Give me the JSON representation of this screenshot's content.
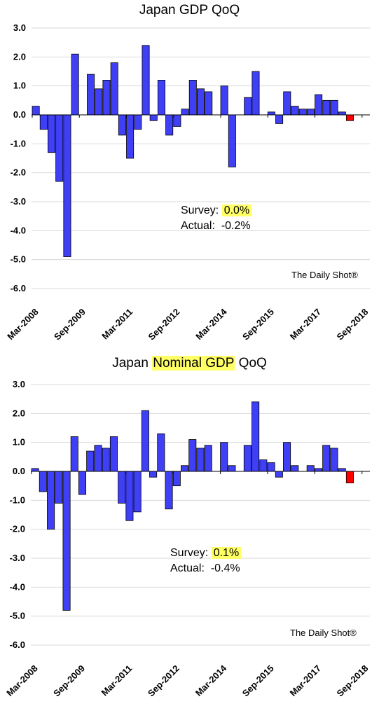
{
  "chart_data": [
    {
      "type": "bar",
      "title": "Japan GDP QoQ",
      "ylim": [
        -6.0,
        3.0
      ],
      "yticks": [
        "3.0",
        "2.0",
        "1.0",
        "0.0",
        "-1.0",
        "-2.0",
        "-3.0",
        "-4.0",
        "-5.0",
        "-6.0"
      ],
      "xtick_labels": [
        "Mar-2008",
        "Sep-2009",
        "Mar-2011",
        "Sep-2012",
        "Mar-2014",
        "Sep-2015",
        "Mar-2017",
        "Sep-2018"
      ],
      "series": [
        {
          "values": [
            0.3,
            -0.5,
            -1.3,
            -2.3,
            -4.9,
            2.1,
            null,
            1.4,
            0.9,
            1.2,
            1.8,
            -0.7,
            -1.5,
            -0.5,
            2.4,
            -0.2,
            1.2,
            -0.7,
            -0.4,
            0.2,
            1.2,
            0.9,
            0.8,
            null,
            1.0,
            -1.8,
            null,
            0.6,
            1.5,
            null,
            0.1,
            -0.3,
            0.8,
            0.3,
            0.2,
            0.2,
            0.7,
            0.5,
            0.5,
            0.1,
            -0.2
          ],
          "color": "#3f3ff5",
          "last_bar_color": "#ff0000"
        }
      ],
      "grid": true,
      "annotation": {
        "survey_label": "Survey:",
        "survey_value": "0.0%",
        "actual_label": "Actual:",
        "actual_value": "-0.2%"
      },
      "source": "The Daily Shot®"
    },
    {
      "type": "bar",
      "title_prefix": "Japan ",
      "title_highlight": "Nominal GDP",
      "title_suffix": " QoQ",
      "ylim": [
        -6.0,
        3.0
      ],
      "yticks": [
        "3.0",
        "2.0",
        "1.0",
        "0.0",
        "-1.0",
        "-2.0",
        "-3.0",
        "-4.0",
        "-5.0",
        "-6.0"
      ],
      "xtick_labels": [
        "Mar-2008",
        "Sep-2009",
        "Mar-2011",
        "Sep-2012",
        "Mar-2014",
        "Sep-2015",
        "Mar-2017",
        "Sep-2018"
      ],
      "series": [
        {
          "values": [
            0.1,
            -0.7,
            -2.0,
            -1.1,
            -4.8,
            1.2,
            -0.8,
            0.7,
            0.9,
            0.8,
            1.2,
            -1.1,
            -1.7,
            -1.4,
            2.1,
            -0.2,
            1.3,
            -1.3,
            -0.5,
            0.2,
            1.1,
            0.8,
            0.9,
            null,
            1.0,
            0.2,
            null,
            0.9,
            2.4,
            0.4,
            0.3,
            -0.2,
            1.0,
            0.2,
            null,
            0.2,
            0.1,
            0.9,
            0.8,
            0.1,
            -0.4
          ],
          "color": "#3f3ff5",
          "last_bar_color": "#ff0000"
        }
      ],
      "grid": true,
      "annotation": {
        "survey_label": "Survey:",
        "survey_value": "0.1%",
        "actual_label": "Actual:",
        "actual_value": "-0.4%"
      },
      "source": "The Daily Shot®"
    }
  ]
}
